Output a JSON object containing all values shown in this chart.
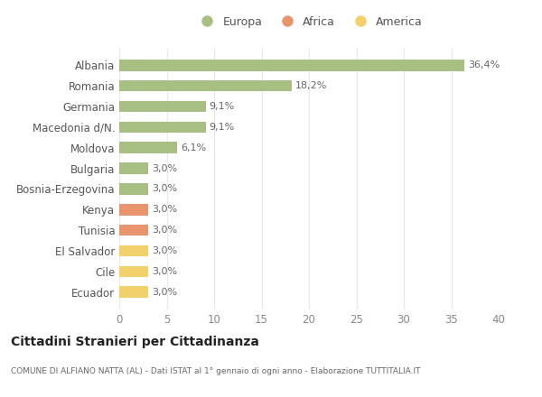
{
  "categories": [
    "Ecuador",
    "Cile",
    "El Salvador",
    "Tunisia",
    "Kenya",
    "Bosnia-Erzegovina",
    "Bulgaria",
    "Moldova",
    "Macedonia d/N.",
    "Germania",
    "Romania",
    "Albania"
  ],
  "values": [
    3.0,
    3.0,
    3.0,
    3.0,
    3.0,
    3.0,
    3.0,
    6.1,
    9.1,
    9.1,
    18.2,
    36.4
  ],
  "labels": [
    "3,0%",
    "3,0%",
    "3,0%",
    "3,0%",
    "3,0%",
    "3,0%",
    "3,0%",
    "6,1%",
    "9,1%",
    "9,1%",
    "18,2%",
    "36,4%"
  ],
  "colors": [
    "#f2d06b",
    "#f2d06b",
    "#f2d06b",
    "#e8956d",
    "#e8956d",
    "#a8bf84",
    "#a8bf84",
    "#a8bf84",
    "#a8bf84",
    "#a8bf84",
    "#a8bf84",
    "#a8bf84"
  ],
  "europa_color": "#a8bf84",
  "africa_color": "#e8956d",
  "america_color": "#f2d06b",
  "xlim": [
    0,
    40
  ],
  "xticks": [
    0,
    5,
    10,
    15,
    20,
    25,
    30,
    35,
    40
  ],
  "title": "Cittadini Stranieri per Cittadinanza",
  "subtitle": "COMUNE DI ALFIANO NATTA (AL) - Dati ISTAT al 1° gennaio di ogni anno - Elaborazione TUTTITALIA.IT",
  "bg_color": "#ffffff",
  "grid_color": "#e8e8e8",
  "bar_height": 0.55,
  "legend_europa": "Europa",
  "legend_africa": "Africa",
  "legend_america": "America"
}
